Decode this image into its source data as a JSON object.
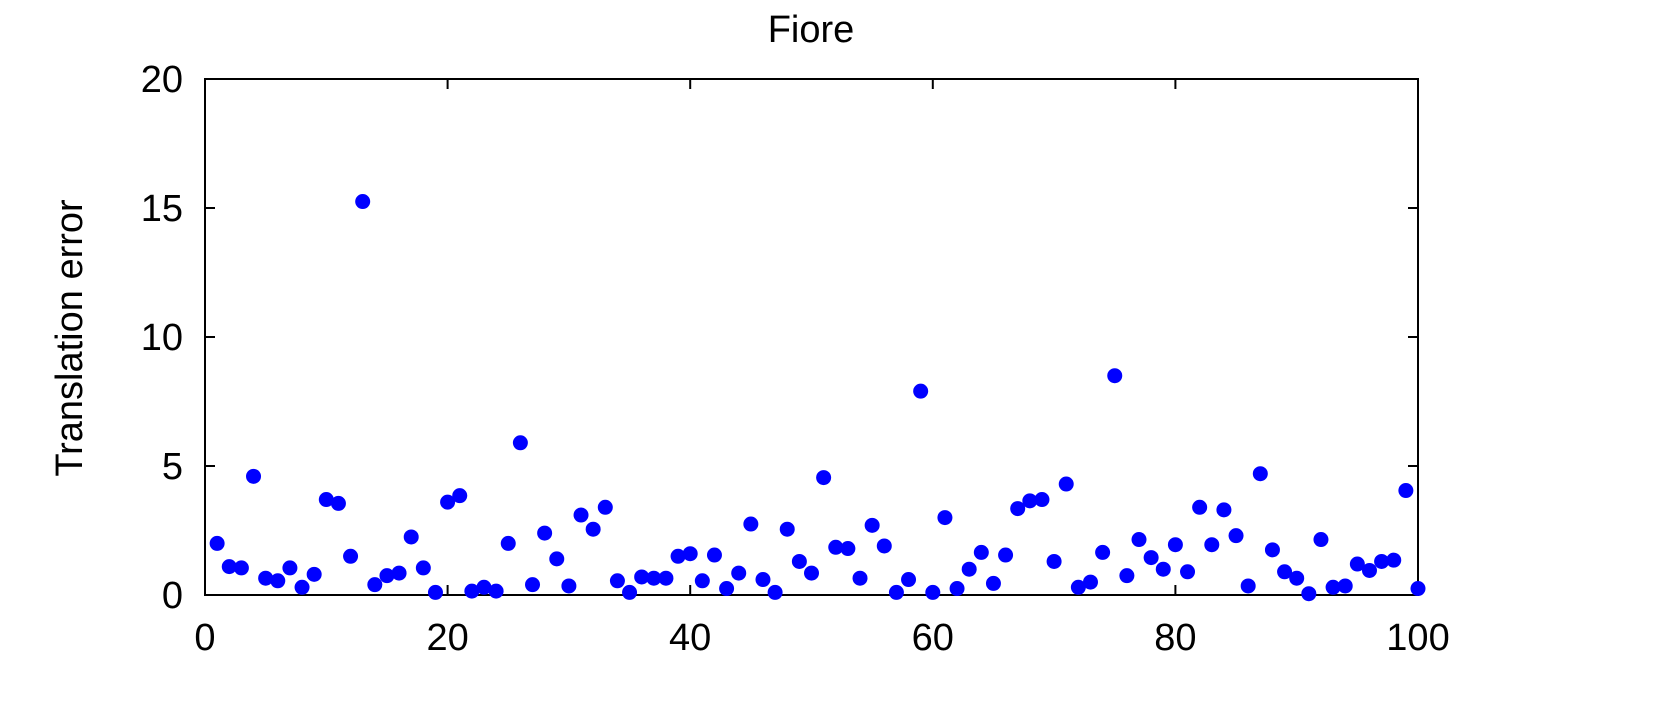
{
  "chart_data": {
    "type": "scatter",
    "title": "Fiore",
    "xlabel": "",
    "ylabel": "Translation error",
    "xlim": [
      0,
      100
    ],
    "ylim": [
      0,
      20
    ],
    "xticks": [
      0,
      20,
      40,
      60,
      80,
      100
    ],
    "yticks": [
      0,
      5,
      10,
      15,
      20
    ],
    "grid": false,
    "marker_color": "#0000ff",
    "series": [
      {
        "x": [
          1,
          2,
          3,
          4,
          5,
          6,
          7,
          8,
          9,
          10,
          11,
          12,
          13,
          14,
          15,
          16,
          17,
          18,
          19,
          20,
          21,
          22,
          23,
          24,
          25,
          26,
          27,
          28,
          29,
          30,
          31,
          32,
          33,
          34,
          35,
          36,
          37,
          38,
          39,
          40,
          41,
          42,
          43,
          44,
          45,
          46,
          47,
          48,
          49,
          50,
          51,
          52,
          53,
          54,
          55,
          56,
          57,
          58,
          59,
          60,
          61,
          62,
          63,
          64,
          65,
          66,
          67,
          68,
          69,
          70,
          71,
          72,
          73,
          74,
          75,
          76,
          77,
          78,
          79,
          80,
          81,
          82,
          83,
          84,
          85,
          86,
          87,
          88,
          89,
          90,
          91,
          92,
          93,
          94,
          95,
          96,
          97,
          98,
          99,
          100
        ],
        "y": [
          2.0,
          1.1,
          1.05,
          4.6,
          0.65,
          0.55,
          1.05,
          0.3,
          0.8,
          3.7,
          3.55,
          1.5,
          15.25,
          0.4,
          0.75,
          0.85,
          2.25,
          1.05,
          0.1,
          3.6,
          3.85,
          0.15,
          0.3,
          0.15,
          2.0,
          5.9,
          0.4,
          2.4,
          1.4,
          0.35,
          3.1,
          2.55,
          3.4,
          0.55,
          0.1,
          0.7,
          0.65,
          0.65,
          1.5,
          1.6,
          0.55,
          1.55,
          0.25,
          0.85,
          2.75,
          0.6,
          0.1,
          2.55,
          1.3,
          0.85,
          4.55,
          1.85,
          1.8,
          0.65,
          2.7,
          1.9,
          0.1,
          0.6,
          7.9,
          0.1,
          3.0,
          0.25,
          1.0,
          1.65,
          0.45,
          1.55,
          3.35,
          3.65,
          3.7,
          1.3,
          4.3,
          0.3,
          0.5,
          1.65,
          8.5,
          0.75,
          2.15,
          1.45,
          1.0,
          1.95,
          0.9,
          3.4,
          1.95,
          3.3,
          2.3,
          0.35,
          4.7,
          1.75,
          0.9,
          0.65,
          0.05,
          2.15,
          0.3,
          0.35,
          1.2,
          0.95,
          1.3,
          1.35,
          4.05,
          0.25
        ]
      }
    ]
  }
}
